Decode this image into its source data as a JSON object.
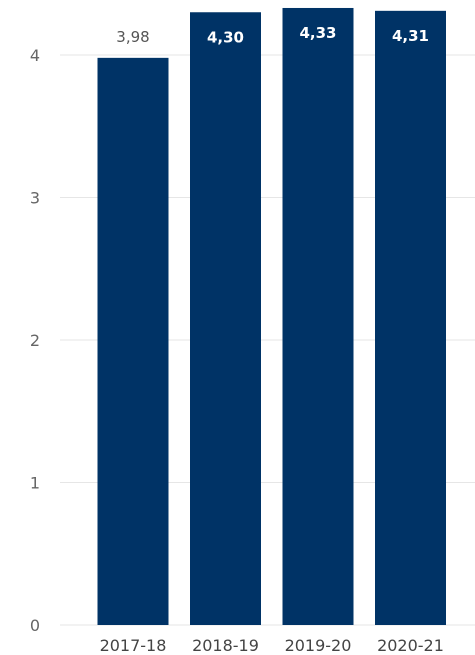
{
  "chart_data": {
    "type": "bar",
    "categories": [
      "2017-18",
      "2018-19",
      "2019-20",
      "2020-21"
    ],
    "values": [
      3.98,
      4.3,
      4.33,
      4.31
    ],
    "data_labels": [
      "3,98",
      "4,30",
      "4,33",
      "4,31"
    ],
    "yticks": [
      "0",
      "1",
      "2",
      "3",
      "4"
    ],
    "ylim": [
      0,
      4.4
    ],
    "grid": true,
    "bar_color": "#003366"
  }
}
